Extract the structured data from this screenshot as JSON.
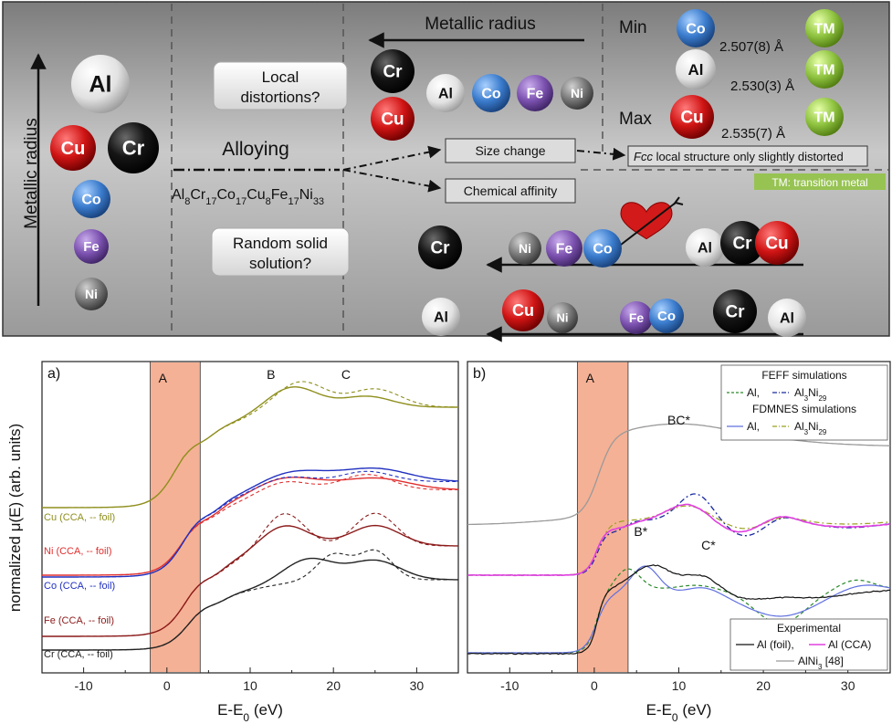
{
  "top": {
    "axis_label": "Metallic radius",
    "box_local": "Local distortions?",
    "box_local_l1": "Local",
    "box_local_l2": "distortions?",
    "box_random_l1": "Random solid",
    "box_random_l2": "solution?",
    "alloying": "Alloying",
    "composition": {
      "parts": [
        [
          "Al",
          "8"
        ],
        [
          "Cr",
          "17"
        ],
        [
          "Co",
          "17"
        ],
        [
          "Cu",
          "8"
        ],
        [
          "Fe",
          "17"
        ],
        [
          "Ni",
          "33"
        ]
      ]
    },
    "metallic_radius": "Metallic radius",
    "size_change": "Size change",
    "chemical_affinity": "Chemical affinity",
    "fcc_note_italic": "Fcc",
    "fcc_note_rest": " local structure only slightly distorted",
    "tm_note": "TM: transition metal",
    "min_label": "Min",
    "max_label": "Max",
    "bond_co": "2.507(8) Å",
    "bond_al": "2.530(3) Å",
    "bond_cu": "2.535(7) Å",
    "tm": "TM",
    "atoms": {
      "Al": "Al",
      "Cu": "Cu",
      "Cr": "Cr",
      "Co": "Co",
      "Fe": "Fe",
      "Ni": "Ni"
    },
    "colors": {
      "Al": "#e8e8e8",
      "Cu": "#cc1010",
      "Cr": "#111111",
      "Co": "#3d7fd0",
      "Fe": "#7d55b0",
      "Ni": "#777777",
      "TM": "#8fc340"
    }
  },
  "chart_data": [
    {
      "type": "line",
      "panel_label": "a)",
      "xlabel": "E-E",
      "xlabel_sub": "0",
      "xlabel_unit": " (eV)",
      "ylabel": "normalized μ(E) (arb. units)",
      "xlim": [
        -15,
        35
      ],
      "xticks": [
        -10,
        0,
        10,
        20,
        30
      ],
      "shaded_region": {
        "x": [
          -2,
          4
        ],
        "label": "A"
      },
      "annotations": [
        {
          "text": "B",
          "x": 12.5
        },
        {
          "text": "C",
          "x": 21.5
        }
      ],
      "series_labels": [
        "Cu (CCA, -- foil)",
        "Ni (CCA, -- foil)",
        "Co (CCA, -- foil)",
        "Fe (CCA, -- foil)",
        "Cr (CCA, -- foil)"
      ],
      "series_colors": [
        "#8f8f1e",
        "#e03030",
        "#2030c0",
        "#8b1a1a",
        "#222222"
      ]
    },
    {
      "type": "line",
      "panel_label": "b)",
      "xlabel": "E-E",
      "xlabel_sub": "0",
      "xlabel_unit": " (eV)",
      "xlim": [
        -15,
        35
      ],
      "xticks": [
        -10,
        0,
        10,
        20,
        30
      ],
      "shaded_region": {
        "x": [
          -2,
          4
        ],
        "label": "A"
      },
      "annotations": [
        {
          "text": "BC*",
          "x": 10
        },
        {
          "text": "B*",
          "x": 5.5
        },
        {
          "text": "C*",
          "x": 13.5
        }
      ],
      "legend_feff": {
        "title": "FEFF simulations",
        "items": [
          "Al,",
          "Al",
          "3",
          "Ni",
          "29"
        ]
      },
      "legend_fdmnes": {
        "title": "FDMNES simulations",
        "items": [
          "Al,",
          "Al",
          "3",
          "Ni",
          "29"
        ]
      },
      "legend_exp": {
        "title": "Experimental",
        "items": [
          "Al (foil),",
          "Al (CCA)",
          "AlNi",
          "3",
          " [48]"
        ]
      }
    }
  ]
}
